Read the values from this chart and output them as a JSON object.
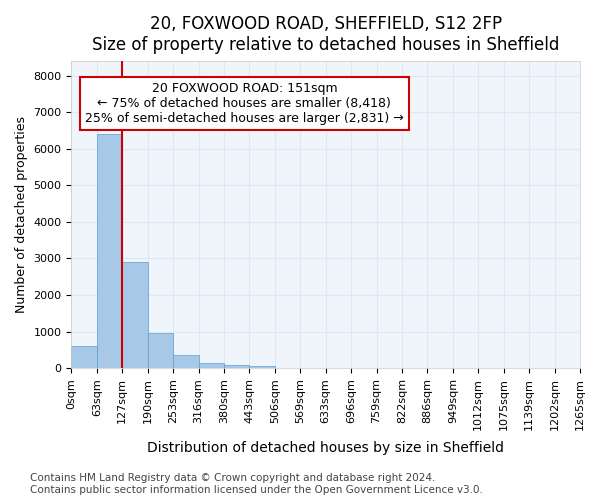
{
  "title": "20, FOXWOOD ROAD, SHEFFIELD, S12 2FP",
  "subtitle": "Size of property relative to detached houses in Sheffield",
  "xlabel": "Distribution of detached houses by size in Sheffield",
  "ylabel": "Number of detached properties",
  "footer_line1": "Contains HM Land Registry data © Crown copyright and database right 2024.",
  "footer_line2": "Contains public sector information licensed under the Open Government Licence v3.0.",
  "bin_labels": [
    "0sqm",
    "63sqm",
    "127sqm",
    "190sqm",
    "253sqm",
    "316sqm",
    "380sqm",
    "443sqm",
    "506sqm",
    "569sqm",
    "633sqm",
    "696sqm",
    "759sqm",
    "822sqm",
    "886sqm",
    "949sqm",
    "1012sqm",
    "1075sqm",
    "1139sqm",
    "1202sqm",
    "1265sqm"
  ],
  "bar_heights": [
    600,
    6400,
    2900,
    950,
    350,
    150,
    100,
    70,
    15,
    5,
    3,
    2,
    1,
    1,
    0,
    0,
    0,
    0,
    0,
    0
  ],
  "bar_color": "#a8c8e8",
  "bar_edge_color": "#5a9fd4",
  "grid_color": "#dde8f0",
  "background_color": "#f0f5fc",
  "red_line_x": 2,
  "annotation_text_line1": "20 FOXWOOD ROAD: 151sqm",
  "annotation_text_line2": "← 75% of detached houses are smaller (8,418)",
  "annotation_text_line3": "25% of semi-detached houses are larger (2,831) →",
  "annotation_box_color": "#cc0000",
  "ylim": [
    0,
    8400
  ],
  "yticks": [
    0,
    1000,
    2000,
    3000,
    4000,
    5000,
    6000,
    7000,
    8000
  ],
  "title_fontsize": 12,
  "subtitle_fontsize": 11,
  "xlabel_fontsize": 10,
  "ylabel_fontsize": 9,
  "tick_fontsize": 8,
  "annotation_fontsize": 9,
  "footer_fontsize": 7.5
}
